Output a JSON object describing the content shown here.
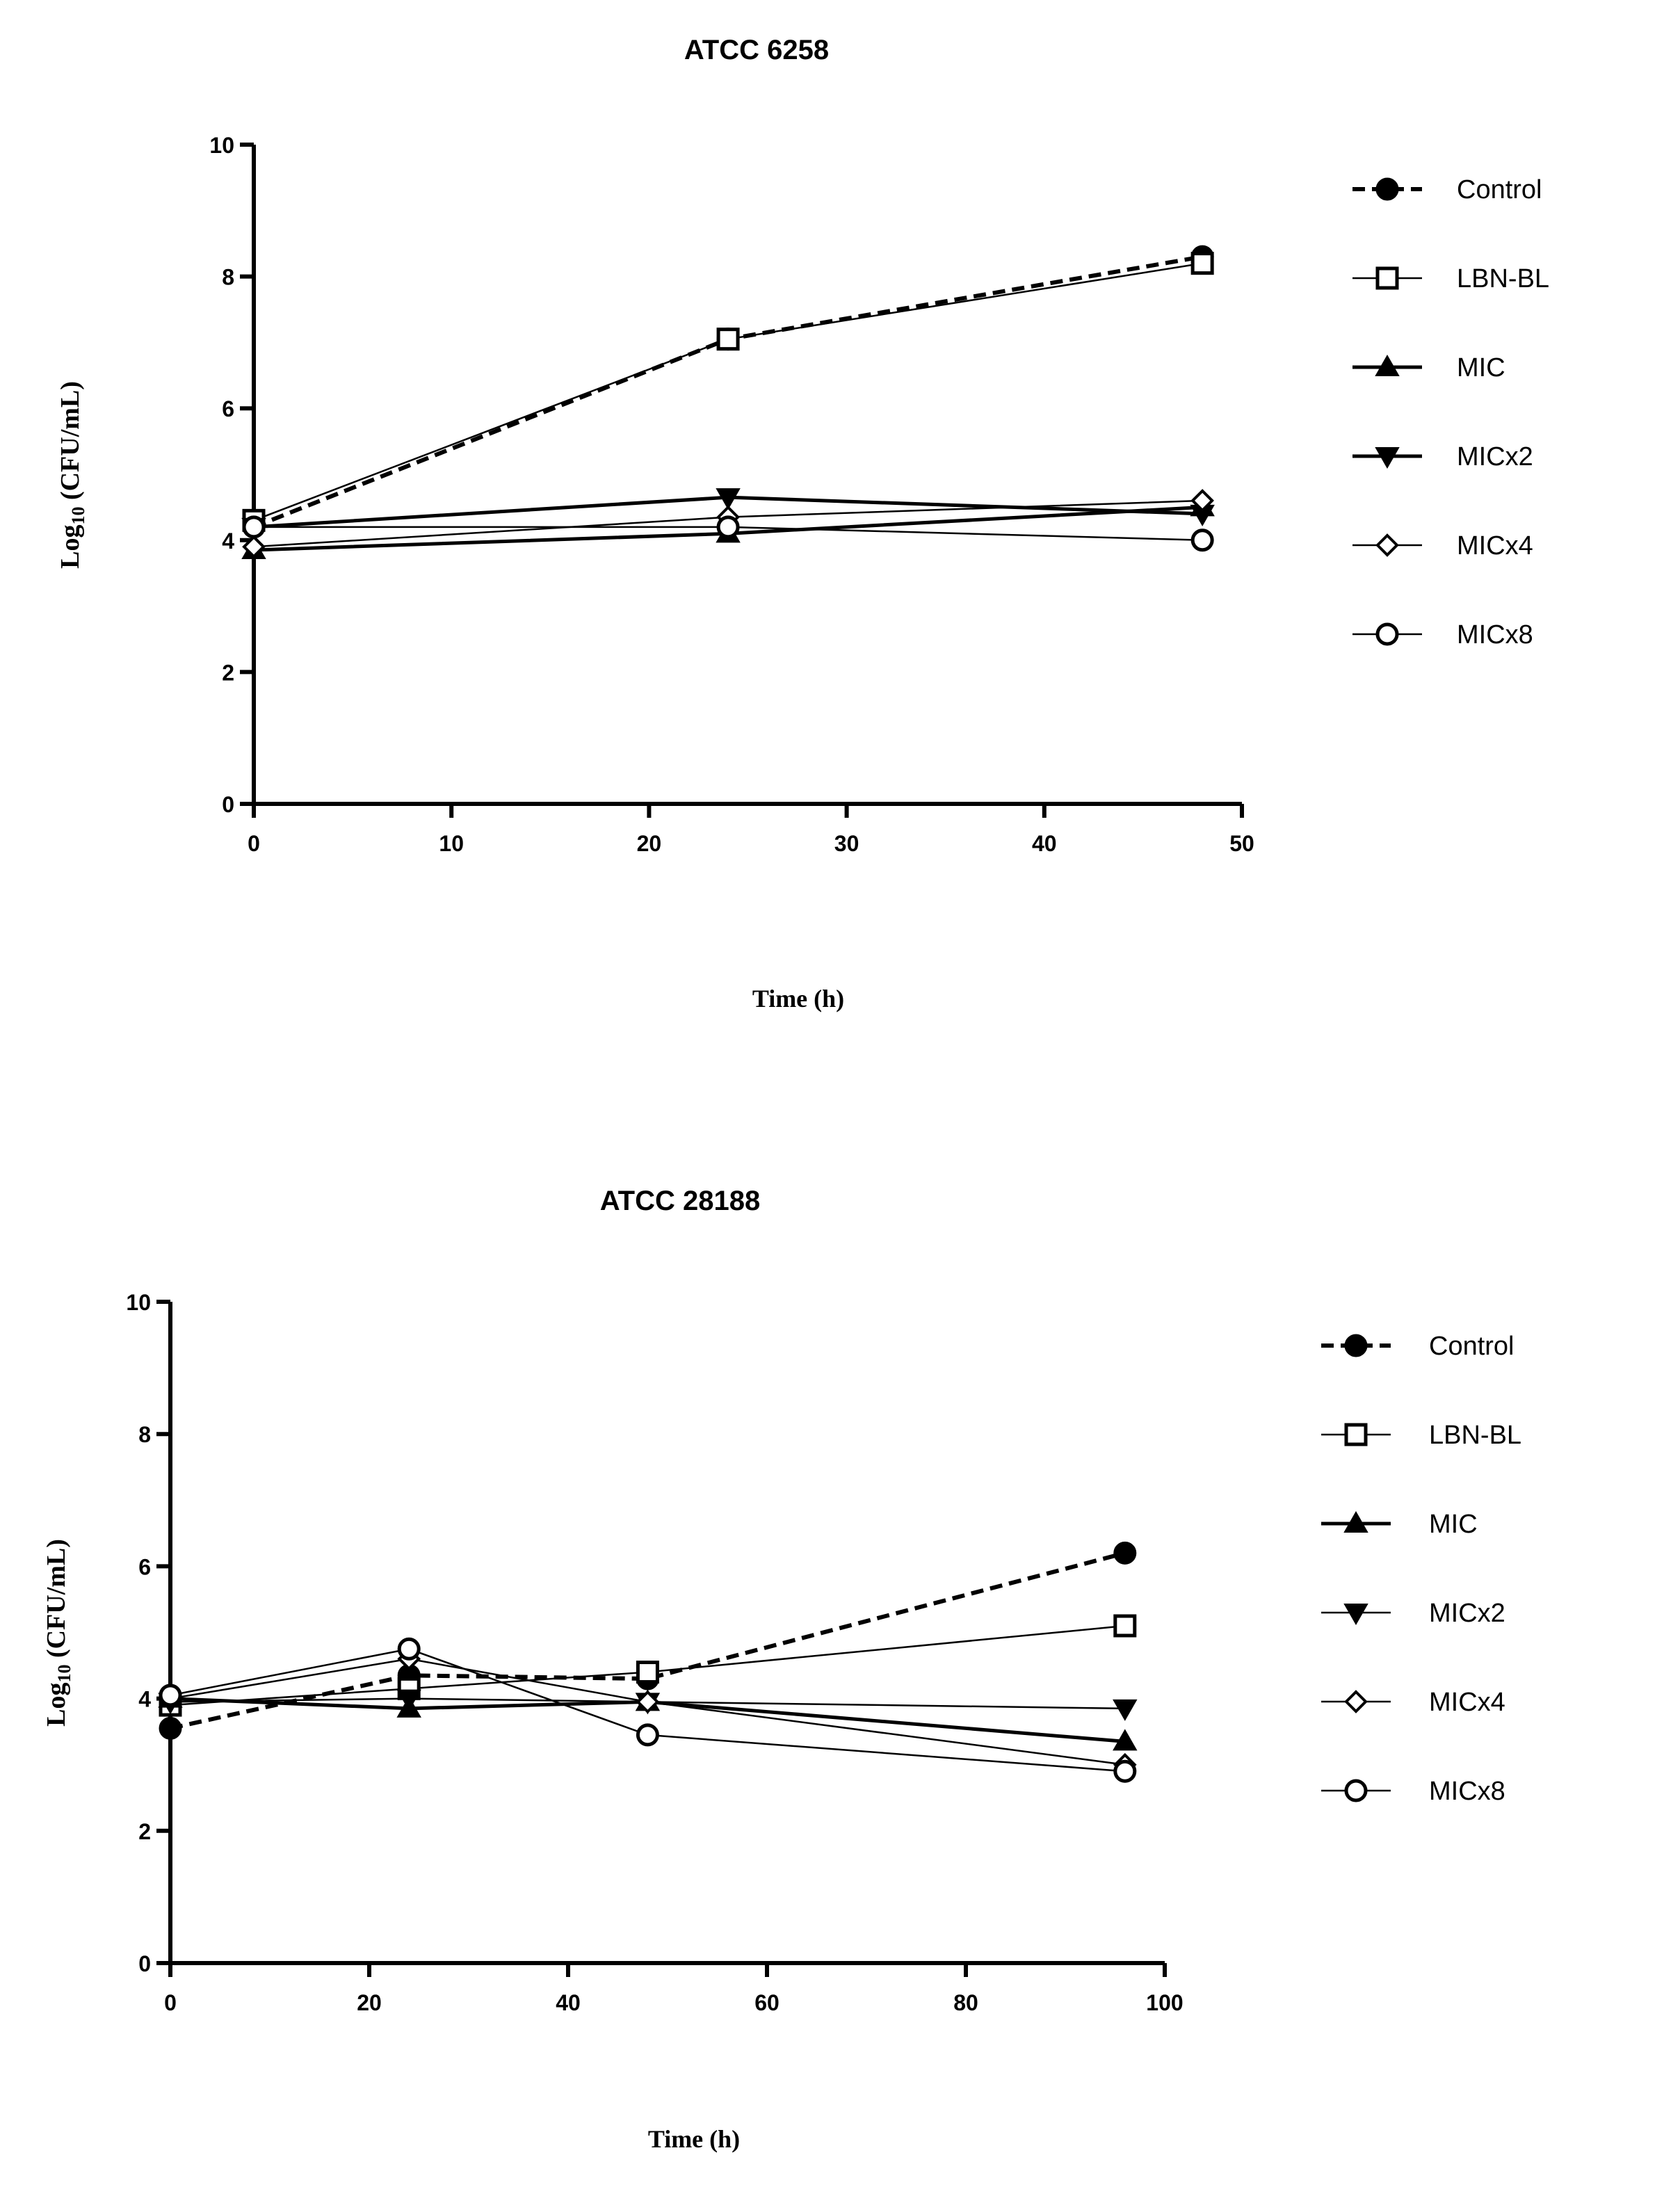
{
  "chart_data": [
    {
      "type": "line",
      "title": "ATCC 6258",
      "xlabel": "Time (h)",
      "ylabel_main": "Log",
      "ylabel_sub": "10",
      "ylabel_rest": " (CFU/mL)",
      "xlim": [
        0,
        50
      ],
      "ylim": [
        0,
        10
      ],
      "xticks": [
        0,
        10,
        20,
        30,
        40,
        50
      ],
      "yticks": [
        0,
        2,
        4,
        6,
        8,
        10
      ],
      "x": [
        0,
        24,
        48
      ],
      "legend_position": "right",
      "series": [
        {
          "name": "Control",
          "marker": "circle-filled",
          "line": "dashed",
          "values": [
            4.2,
            7.05,
            8.3
          ]
        },
        {
          "name": "LBN-BL",
          "marker": "square-open",
          "line": "solid-thin",
          "values": [
            4.3,
            7.05,
            8.2
          ]
        },
        {
          "name": "MIC",
          "marker": "triangle-up-filled",
          "line": "solid-thick",
          "values": [
            3.85,
            4.1,
            4.5
          ]
        },
        {
          "name": "MICx2",
          "marker": "triangle-down-filled",
          "line": "solid-thick",
          "values": [
            4.2,
            4.65,
            4.4
          ]
        },
        {
          "name": "MICx4",
          "marker": "diamond-open",
          "line": "solid-thin",
          "values": [
            3.9,
            4.35,
            4.6
          ]
        },
        {
          "name": "MICx8",
          "marker": "circle-open",
          "line": "solid-thin",
          "values": [
            4.2,
            4.2,
            4.0
          ]
        }
      ]
    },
    {
      "type": "line",
      "title": "ATCC 28188",
      "xlabel": "Time (h)",
      "ylabel_main": "Log",
      "ylabel_sub": "10",
      "ylabel_rest": " (CFU/mL)",
      "xlim": [
        0,
        100
      ],
      "ylim": [
        0,
        10
      ],
      "xticks": [
        0,
        20,
        40,
        60,
        80,
        100
      ],
      "yticks": [
        0,
        2,
        4,
        6,
        8,
        10
      ],
      "x": [
        0,
        24,
        48,
        96
      ],
      "legend_position": "right",
      "series": [
        {
          "name": "Control",
          "marker": "circle-filled",
          "line": "dashed",
          "values": [
            3.55,
            4.35,
            4.3,
            6.2
          ]
        },
        {
          "name": "LBN-BL",
          "marker": "square-open",
          "line": "solid-thin",
          "values": [
            3.9,
            4.15,
            4.4,
            5.1
          ]
        },
        {
          "name": "MIC",
          "marker": "triangle-up-filled",
          "line": "solid-thick",
          "values": [
            4.0,
            3.85,
            3.95,
            3.35
          ]
        },
        {
          "name": "MICx2",
          "marker": "triangle-down-filled",
          "line": "solid-thin",
          "values": [
            3.95,
            4.0,
            3.95,
            3.85
          ]
        },
        {
          "name": "MICx4",
          "marker": "diamond-open",
          "line": "solid-thin",
          "values": [
            4.0,
            4.6,
            3.95,
            3.0
          ]
        },
        {
          "name": "MICx8",
          "marker": "circle-open",
          "line": "solid-thin",
          "values": [
            4.05,
            4.75,
            3.45,
            2.9
          ]
        }
      ]
    }
  ]
}
